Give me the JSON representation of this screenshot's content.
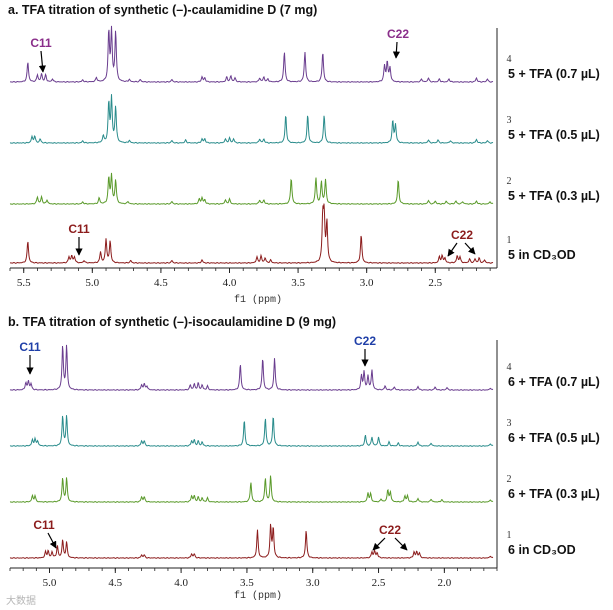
{
  "watermark": "大数据",
  "chart_data": [
    {
      "type": "line",
      "id": "a",
      "title": "a. TFA titration of synthetic (–)-caulamidine D (7 mg)",
      "xlabel": "f1 (ppm)",
      "xlim": [
        5.6,
        2.05
      ],
      "xticks": [
        5.5,
        5.0,
        4.5,
        4.0,
        3.5,
        3.0,
        2.5
      ],
      "xtick_labels": [
        "5.5",
        "5.0",
        "4.5",
        "4.0",
        "3.5",
        "3.0",
        "2.5"
      ],
      "series": [
        {
          "index": "4",
          "prefix": "5",
          "label": "+ TFA (0.7 µL)",
          "color": "#6a3d8f",
          "peaks": [
            [
              5.47,
              1.0
            ],
            [
              5.4,
              0.35
            ],
            [
              5.37,
              0.4
            ],
            [
              5.34,
              0.35
            ],
            [
              5.29,
              0.15
            ],
            [
              5.07,
              0.1
            ],
            [
              4.97,
              0.22
            ],
            [
              4.88,
              2.5
            ],
            [
              4.86,
              2.5
            ],
            [
              4.83,
              2.5
            ],
            [
              4.73,
              0.12
            ],
            [
              4.65,
              0.12
            ],
            [
              4.42,
              0.12
            ],
            [
              4.2,
              0.25
            ],
            [
              4.18,
              0.2
            ],
            [
              4.02,
              0.25
            ],
            [
              3.99,
              0.3
            ],
            [
              3.96,
              0.2
            ],
            [
              3.78,
              0.2
            ],
            [
              3.75,
              0.25
            ],
            [
              3.72,
              0.15
            ],
            [
              3.6,
              1.5
            ],
            [
              3.45,
              1.5
            ],
            [
              3.32,
              1.5
            ],
            [
              2.87,
              0.8
            ],
            [
              2.85,
              1.0
            ],
            [
              2.83,
              0.7
            ],
            [
              2.6,
              0.15
            ],
            [
              2.55,
              0.2
            ],
            [
              2.47,
              0.15
            ],
            [
              2.4,
              0.15
            ],
            [
              2.2,
              0.2
            ],
            [
              2.12,
              0.15
            ]
          ]
        },
        {
          "index": "3",
          "prefix": "5",
          "label": "+ TFA (0.5 µL)",
          "color": "#2a8c8c",
          "peaks": [
            [
              5.44,
              0.3
            ],
            [
              5.42,
              0.35
            ],
            [
              5.38,
              0.2
            ],
            [
              5.07,
              0.1
            ],
            [
              4.92,
              0.35
            ],
            [
              4.88,
              2.0
            ],
            [
              4.86,
              2.2
            ],
            [
              4.83,
              1.8
            ],
            [
              4.73,
              0.12
            ],
            [
              4.42,
              0.12
            ],
            [
              4.32,
              0.15
            ],
            [
              4.2,
              0.2
            ],
            [
              4.18,
              0.2
            ],
            [
              4.03,
              0.2
            ],
            [
              4.0,
              0.25
            ],
            [
              3.97,
              0.2
            ],
            [
              3.78,
              0.2
            ],
            [
              3.75,
              0.2
            ],
            [
              3.59,
              1.4
            ],
            [
              3.43,
              1.4
            ],
            [
              3.31,
              1.4
            ],
            [
              2.81,
              1.1
            ],
            [
              2.79,
              0.9
            ],
            [
              2.55,
              0.15
            ],
            [
              2.48,
              0.15
            ],
            [
              2.39,
              0.12
            ],
            [
              2.2,
              0.18
            ],
            [
              2.12,
              0.12
            ]
          ]
        },
        {
          "index": "2",
          "prefix": "5",
          "label": "+ TFA (0.3 µL)",
          "color": "#5a9a2a",
          "peaks": [
            [
              5.4,
              0.35
            ],
            [
              5.37,
              0.35
            ],
            [
              5.33,
              0.2
            ],
            [
              5.07,
              0.1
            ],
            [
              4.95,
              0.3
            ],
            [
              4.88,
              1.3
            ],
            [
              4.86,
              1.4
            ],
            [
              4.83,
              1.2
            ],
            [
              4.74,
              0.12
            ],
            [
              4.42,
              0.12
            ],
            [
              4.22,
              0.25
            ],
            [
              4.2,
              0.3
            ],
            [
              4.18,
              0.2
            ],
            [
              4.03,
              0.2
            ],
            [
              4.0,
              0.25
            ],
            [
              3.78,
              0.2
            ],
            [
              3.75,
              0.2
            ],
            [
              3.55,
              1.3
            ],
            [
              3.37,
              1.3
            ],
            [
              3.33,
              1.1
            ],
            [
              3.3,
              1.2
            ],
            [
              2.77,
              1.2
            ],
            [
              2.55,
              0.18
            ],
            [
              2.5,
              0.15
            ],
            [
              2.42,
              0.15
            ],
            [
              2.35,
              0.15
            ],
            [
              2.3,
              0.12
            ],
            [
              2.2,
              0.15
            ],
            [
              2.1,
              0.12
            ]
          ]
        },
        {
          "index": "1",
          "prefix": "5",
          "label": "in CD₃OD",
          "color": "#8c1c1c",
          "peaks": [
            [
              5.47,
              1.1
            ],
            [
              5.17,
              0.3
            ],
            [
              5.15,
              0.35
            ],
            [
              5.13,
              0.3
            ],
            [
              5.06,
              0.12
            ],
            [
              4.94,
              0.55
            ],
            [
              4.9,
              1.2
            ],
            [
              4.87,
              1.1
            ],
            [
              4.72,
              0.12
            ],
            [
              4.42,
              0.12
            ],
            [
              4.2,
              0.15
            ],
            [
              3.8,
              0.3
            ],
            [
              3.77,
              0.35
            ],
            [
              3.74,
              0.25
            ],
            [
              3.7,
              0.15
            ],
            [
              3.32,
              2.2
            ],
            [
              3.31,
              2.2
            ],
            [
              3.29,
              2.0
            ],
            [
              3.04,
              1.4
            ],
            [
              2.47,
              0.3
            ],
            [
              2.45,
              0.35
            ],
            [
              2.43,
              0.25
            ],
            [
              2.34,
              0.35
            ],
            [
              2.32,
              0.3
            ],
            [
              2.25,
              0.2
            ],
            [
              2.21,
              0.2
            ],
            [
              2.18,
              0.25
            ],
            [
              2.14,
              0.15
            ]
          ]
        }
      ],
      "annotations": [
        {
          "text": "C11",
          "color": "#8a2e8a",
          "row": 0
        },
        {
          "text": "C22",
          "color": "#8a2e8a",
          "row": 0
        },
        {
          "text": "C11",
          "color": "#8c1c1c",
          "row": 3
        },
        {
          "text": "C22",
          "color": "#8c1c1c",
          "row": 3
        }
      ]
    },
    {
      "type": "line",
      "id": "b",
      "title": "b. TFA titration of synthetic (–)-isocaulamidine D (9 mg)",
      "xlabel": "f1 (ppm)",
      "xlim": [
        5.3,
        1.6
      ],
      "xticks": [
        5.0,
        4.5,
        4.0,
        3.5,
        3.0,
        2.5,
        2.0
      ],
      "xtick_labels": [
        "5.0",
        "4.5",
        "4.0",
        "3.5",
        "3.0",
        "2.5",
        "2.0"
      ],
      "series": [
        {
          "index": "4",
          "prefix": "6",
          "label": "+ TFA (0.7 µL)",
          "color": "#6a3d8f",
          "peaks": [
            [
              5.18,
              0.35
            ],
            [
              5.16,
              0.45
            ],
            [
              5.14,
              0.3
            ],
            [
              4.9,
              2.2
            ],
            [
              4.87,
              2.2
            ],
            [
              4.3,
              0.25
            ],
            [
              4.28,
              0.3
            ],
            [
              4.26,
              0.2
            ],
            [
              3.93,
              0.25
            ],
            [
              3.9,
              0.3
            ],
            [
              3.87,
              0.35
            ],
            [
              3.84,
              0.25
            ],
            [
              3.8,
              0.2
            ],
            [
              3.55,
              1.3
            ],
            [
              3.38,
              1.6
            ],
            [
              3.29,
              1.6
            ],
            [
              2.63,
              0.7
            ],
            [
              2.61,
              0.9
            ],
            [
              2.58,
              0.7
            ],
            [
              2.55,
              1.0
            ],
            [
              2.45,
              0.2
            ],
            [
              2.38,
              0.15
            ],
            [
              2.2,
              0.18
            ],
            [
              2.07,
              0.15
            ],
            [
              1.98,
              0.12
            ],
            [
              1.65,
              0.1
            ]
          ]
        },
        {
          "index": "3",
          "prefix": "6",
          "label": "+ TFA (0.5 µL)",
          "color": "#2a8c8c",
          "peaks": [
            [
              5.13,
              0.3
            ],
            [
              5.11,
              0.35
            ],
            [
              5.09,
              0.25
            ],
            [
              4.9,
              1.5
            ],
            [
              4.87,
              1.5
            ],
            [
              4.3,
              0.25
            ],
            [
              4.28,
              0.25
            ],
            [
              3.92,
              0.25
            ],
            [
              3.9,
              0.3
            ],
            [
              3.87,
              0.25
            ],
            [
              3.84,
              0.2
            ],
            [
              3.52,
              1.3
            ],
            [
              3.36,
              1.4
            ],
            [
              3.3,
              1.5
            ],
            [
              2.6,
              0.55
            ],
            [
              2.55,
              0.45
            ],
            [
              2.5,
              0.45
            ],
            [
              2.42,
              0.2
            ],
            [
              2.35,
              0.15
            ],
            [
              2.2,
              0.2
            ],
            [
              2.1,
              0.15
            ],
            [
              1.65,
              0.12
            ]
          ]
        },
        {
          "index": "2",
          "prefix": "6",
          "label": "+ TFA (0.3 µL)",
          "color": "#5a9a2a",
          "peaks": [
            [
              5.13,
              0.3
            ],
            [
              5.11,
              0.3
            ],
            [
              4.9,
              1.2
            ],
            [
              4.87,
              1.2
            ],
            [
              4.3,
              0.25
            ],
            [
              4.28,
              0.25
            ],
            [
              3.92,
              0.3
            ],
            [
              3.9,
              0.3
            ],
            [
              3.87,
              0.25
            ],
            [
              3.84,
              0.2
            ],
            [
              3.8,
              0.2
            ],
            [
              3.47,
              1.0
            ],
            [
              3.36,
              1.2
            ],
            [
              3.32,
              1.3
            ],
            [
              2.58,
              0.45
            ],
            [
              2.56,
              0.4
            ],
            [
              2.48,
              0.15
            ],
            [
              2.43,
              0.6
            ],
            [
              2.41,
              0.5
            ],
            [
              2.3,
              0.3
            ],
            [
              2.28,
              0.3
            ],
            [
              2.2,
              0.18
            ],
            [
              2.1,
              0.15
            ],
            [
              2.02,
              0.12
            ],
            [
              1.65,
              0.12
            ]
          ]
        },
        {
          "index": "1",
          "prefix": "6",
          "label": "in CD₃OD",
          "color": "#8c1c1c",
          "peaks": [
            [
              5.03,
              0.3
            ],
            [
              5.01,
              0.35
            ],
            [
              4.98,
              0.3
            ],
            [
              4.94,
              0.6
            ],
            [
              4.9,
              0.9
            ],
            [
              4.87,
              0.8
            ],
            [
              4.3,
              0.15
            ],
            [
              4.28,
              0.15
            ],
            [
              3.92,
              0.2
            ],
            [
              3.9,
              0.2
            ],
            [
              3.42,
              1.4
            ],
            [
              3.32,
              1.6
            ],
            [
              3.3,
              1.5
            ],
            [
              3.05,
              1.4
            ],
            [
              2.55,
              0.3
            ],
            [
              2.53,
              0.35
            ],
            [
              2.51,
              0.25
            ],
            [
              2.23,
              0.3
            ],
            [
              2.21,
              0.3
            ],
            [
              2.19,
              0.25
            ],
            [
              1.65,
              0.1
            ]
          ]
        }
      ],
      "annotations": [
        {
          "text": "C11",
          "color": "#1f3fa8",
          "row": 0
        },
        {
          "text": "C22",
          "color": "#1f3fa8",
          "row": 0
        },
        {
          "text": "C11",
          "color": "#8c1c1c",
          "row": 3
        },
        {
          "text": "C22",
          "color": "#8c1c1c",
          "row": 3
        }
      ]
    }
  ]
}
